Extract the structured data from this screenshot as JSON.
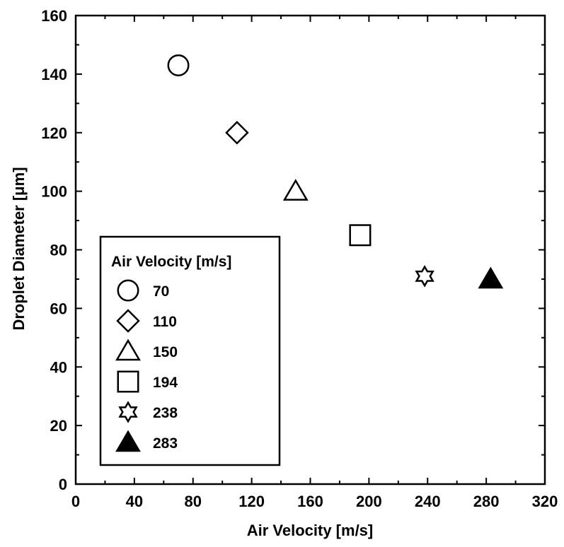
{
  "chart_data": {
    "type": "scatter",
    "title": "",
    "xlabel": "Air Velocity [m/s]",
    "ylabel": "Droplet Diameter [μm]",
    "xlim": [
      0,
      320
    ],
    "ylim": [
      0,
      160
    ],
    "xticks": [
      0,
      40,
      80,
      120,
      160,
      200,
      240,
      280,
      320
    ],
    "yticks": [
      0,
      20,
      40,
      60,
      80,
      100,
      120,
      140,
      160
    ],
    "grid": false,
    "legend": {
      "title": "Air Velocity [m/s]",
      "placement": "lower-left"
    },
    "series": [
      {
        "name": "70",
        "marker": "circle",
        "filled": false,
        "x": 70,
        "y": 143
      },
      {
        "name": "110",
        "marker": "diamond",
        "filled": false,
        "x": 110,
        "y": 120
      },
      {
        "name": "150",
        "marker": "triangle",
        "filled": false,
        "x": 150,
        "y": 100
      },
      {
        "name": "194",
        "marker": "square",
        "filled": false,
        "x": 194,
        "y": 85
      },
      {
        "name": "238",
        "marker": "star-of-david",
        "filled": false,
        "x": 238,
        "y": 71
      },
      {
        "name": "283",
        "marker": "triangle-filled",
        "filled": true,
        "x": 283,
        "y": 70
      }
    ]
  }
}
